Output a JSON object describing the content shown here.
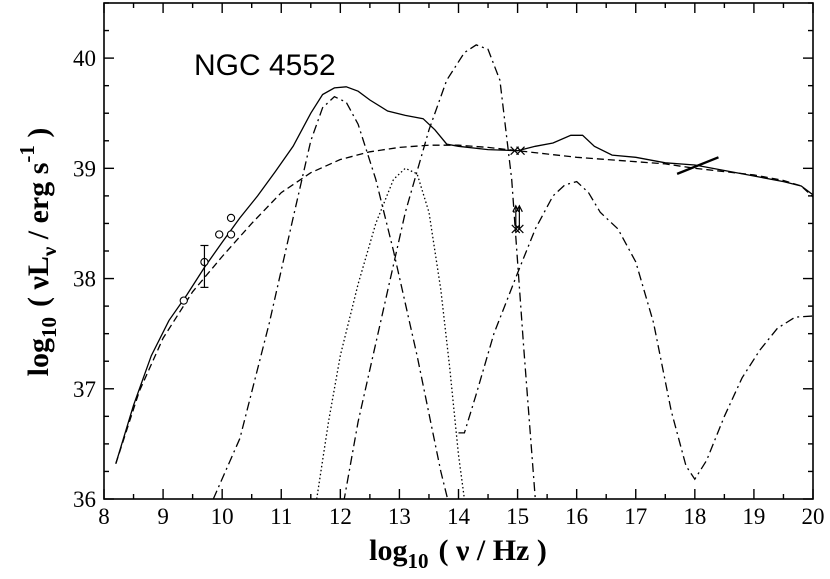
{
  "chart_data": {
    "type": "line",
    "title": "NGC 4552",
    "xlabel": {
      "prefix": "log",
      "sub": "10",
      "body": "( ν / Hz )"
    },
    "ylabel": {
      "prefix": "log",
      "sub": "10",
      "body1": "( νL",
      "sub2": "ν",
      "body2": " / erg s",
      "sup": "-1",
      "body3": " )"
    },
    "xlim": [
      8,
      20
    ],
    "ylim": [
      36,
      40.5
    ],
    "xticks": [
      8,
      9,
      10,
      11,
      12,
      13,
      14,
      15,
      16,
      17,
      18,
      19,
      20
    ],
    "yticks": [
      36,
      37,
      38,
      39,
      40
    ],
    "x_minor_step": 0.5,
    "y_minor_step": 0.25,
    "grid": false,
    "series": [
      {
        "style": "solid",
        "x": [
          8.2,
          8.5,
          8.8,
          9.1,
          9.4,
          9.7,
          10.0,
          10.3,
          10.6,
          10.9,
          11.2,
          11.5,
          11.7,
          11.9,
          12.1,
          12.3,
          12.5,
          12.8,
          13.1,
          13.4,
          13.6,
          13.8,
          14.0,
          14.5,
          15.0,
          15.3,
          15.6,
          15.9,
          16.1,
          16.3,
          16.6,
          17.0,
          17.5,
          18.0,
          18.5,
          19.0,
          19.5,
          19.8,
          20.0
        ],
        "y": [
          36.32,
          36.85,
          37.3,
          37.62,
          37.85,
          38.1,
          38.33,
          38.55,
          38.75,
          38.97,
          39.2,
          39.5,
          39.67,
          39.73,
          39.74,
          39.7,
          39.62,
          39.52,
          39.48,
          39.45,
          39.35,
          39.22,
          39.2,
          39.17,
          39.16,
          39.2,
          39.23,
          39.3,
          39.3,
          39.2,
          39.12,
          39.1,
          39.05,
          39.03,
          38.98,
          38.93,
          38.88,
          38.84,
          38.76
        ]
      },
      {
        "style": "dashed",
        "x": [
          8.2,
          8.6,
          9.0,
          9.5,
          10.0,
          10.5,
          11.0,
          11.5,
          12.0,
          12.5,
          13.0,
          13.5,
          14.0,
          14.5,
          15.0,
          15.5,
          16.0,
          16.5,
          17.0,
          17.5,
          18.0,
          18.5,
          19.0,
          19.5,
          19.8,
          20.0
        ],
        "y": [
          36.32,
          36.98,
          37.46,
          37.88,
          38.2,
          38.5,
          38.78,
          38.96,
          39.08,
          39.15,
          39.19,
          39.21,
          39.21,
          39.19,
          39.16,
          39.13,
          39.1,
          39.08,
          39.06,
          39.04,
          39.0,
          38.97,
          38.94,
          38.89,
          38.84,
          38.74
        ]
      },
      {
        "style": "dash-dot",
        "x": [
          9.85,
          10.3,
          10.8,
          11.2,
          11.5,
          11.7,
          11.9,
          12.1,
          12.3,
          12.6,
          12.9,
          13.3,
          13.7,
          14.0
        ],
        "y": [
          36.0,
          36.55,
          37.6,
          38.55,
          39.25,
          39.55,
          39.65,
          39.6,
          39.4,
          38.9,
          38.25,
          37.3,
          36.25,
          35.6
        ]
      },
      {
        "style": "dash-dot",
        "x": [
          12.0,
          12.3,
          12.7,
          13.1,
          13.5,
          13.8,
          14.1,
          14.3,
          14.5,
          14.7,
          14.9,
          15.1,
          15.3
        ],
        "y": [
          35.8,
          36.7,
          37.65,
          38.6,
          39.35,
          39.8,
          40.05,
          40.12,
          40.08,
          39.8,
          38.9,
          37.4,
          36.0
        ]
      },
      {
        "style": "dash-dot",
        "x": [
          14.0,
          14.1,
          14.3,
          14.6,
          15.0,
          15.3,
          15.6,
          15.8,
          16.0,
          16.2,
          16.4,
          16.7,
          17.0,
          17.3,
          17.6,
          17.85,
          18.0,
          18.2,
          18.5,
          18.8,
          19.1,
          19.4,
          19.7,
          20.0
        ],
        "y": [
          36.6,
          36.6,
          36.95,
          37.5,
          38.05,
          38.45,
          38.75,
          38.85,
          38.88,
          38.78,
          38.6,
          38.45,
          38.15,
          37.6,
          36.8,
          36.3,
          36.18,
          36.35,
          36.75,
          37.1,
          37.35,
          37.55,
          37.65,
          37.66
        ]
      },
      {
        "style": "dotted",
        "x": [
          11.6,
          11.8,
          12.0,
          12.3,
          12.6,
          12.9,
          13.1,
          13.3,
          13.5,
          13.7,
          13.85,
          14.0,
          14.1
        ],
        "y": [
          36.0,
          36.7,
          37.3,
          37.95,
          38.5,
          38.9,
          39.0,
          38.95,
          38.6,
          37.9,
          37.2,
          36.4,
          36.0
        ]
      }
    ],
    "points_circle": [
      [
        9.35,
        37.8
      ],
      [
        9.7,
        38.15
      ],
      [
        9.95,
        38.4
      ],
      [
        10.15,
        38.4
      ],
      [
        10.15,
        38.55
      ]
    ],
    "error_bars": [
      {
        "x": 9.7,
        "low": 37.92,
        "high": 38.3
      }
    ],
    "points_star": [
      [
        14.95,
        39.16
      ],
      [
        15.05,
        39.16
      ]
    ],
    "lower_limits": [
      {
        "x": 14.97,
        "y": 38.45,
        "arrow_to": 38.66
      },
      {
        "x": 15.03,
        "y": 38.45,
        "arrow_to": 38.66
      }
    ],
    "xray_segment": {
      "x": [
        17.7,
        18.4
      ],
      "y": [
        38.95,
        39.1
      ]
    }
  }
}
